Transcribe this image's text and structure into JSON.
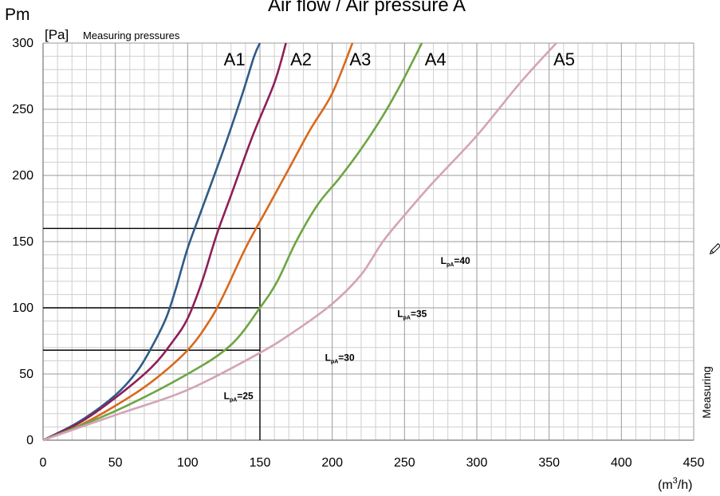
{
  "page": {
    "title": "Air flow / Air pressure A",
    "y_unit_symbol": "Pm",
    "y_unit": "[Pa]",
    "y_label": "Measuring pressures",
    "x_unit_base": "(m",
    "x_unit_exp": "3",
    "x_unit_tail": "/h)",
    "right_label": "Measuring"
  },
  "chart_data": {
    "type": "line",
    "title": "Air flow / Air pressure A",
    "xlabel": "(m3/h)",
    "ylabel": "Measuring pressures",
    "xlim": [
      0,
      450
    ],
    "ylim": [
      0,
      300
    ],
    "x_ticks": [
      0,
      50,
      100,
      150,
      200,
      250,
      300,
      350,
      400,
      450
    ],
    "y_ticks": [
      0,
      50,
      100,
      150,
      200,
      250,
      300
    ],
    "grid": true,
    "series": [
      {
        "name": "A1",
        "color": "#2f5b87",
        "points": [
          [
            0,
            0
          ],
          [
            25,
            14
          ],
          [
            50,
            34
          ],
          [
            65,
            52
          ],
          [
            75,
            70
          ],
          [
            85,
            92
          ],
          [
            92,
            115
          ],
          [
            100,
            145
          ],
          [
            110,
            175
          ],
          [
            125,
            220
          ],
          [
            138,
            262
          ],
          [
            146,
            290
          ],
          [
            150,
            300
          ]
        ]
      },
      {
        "name": "A2",
        "color": "#8e1f57",
        "points": [
          [
            0,
            0
          ],
          [
            25,
            13
          ],
          [
            50,
            32
          ],
          [
            75,
            55
          ],
          [
            90,
            75
          ],
          [
            100,
            92
          ],
          [
            110,
            120
          ],
          [
            120,
            155
          ],
          [
            130,
            185
          ],
          [
            145,
            230
          ],
          [
            160,
            270
          ],
          [
            168,
            300
          ]
        ]
      },
      {
        "name": "A3",
        "color": "#d8691e",
        "points": [
          [
            0,
            0
          ],
          [
            25,
            11
          ],
          [
            50,
            26
          ],
          [
            75,
            44
          ],
          [
            100,
            68
          ],
          [
            115,
            90
          ],
          [
            125,
            110
          ],
          [
            140,
            145
          ],
          [
            155,
            175
          ],
          [
            170,
            205
          ],
          [
            185,
            235
          ],
          [
            200,
            262
          ],
          [
            214,
            300
          ]
        ]
      },
      {
        "name": "A4",
        "color": "#6da543",
        "points": [
          [
            0,
            0
          ],
          [
            50,
            22
          ],
          [
            100,
            50
          ],
          [
            130,
            72
          ],
          [
            150,
            100
          ],
          [
            162,
            120
          ],
          [
            175,
            150
          ],
          [
            190,
            178
          ],
          [
            205,
            198
          ],
          [
            220,
            220
          ],
          [
            235,
            245
          ],
          [
            248,
            270
          ],
          [
            262,
            300
          ]
        ]
      },
      {
        "name": "A5",
        "color": "#d4a3b6",
        "points": [
          [
            0,
            0
          ],
          [
            50,
            19
          ],
          [
            100,
            38
          ],
          [
            150,
            66
          ],
          [
            175,
            83
          ],
          [
            200,
            103
          ],
          [
            220,
            125
          ],
          [
            235,
            150
          ],
          [
            250,
            170
          ],
          [
            270,
            195
          ],
          [
            300,
            230
          ],
          [
            330,
            270
          ],
          [
            355,
            300
          ]
        ]
      }
    ],
    "annotations": [
      {
        "label": "L",
        "sub": "pA",
        "value": "=25",
        "x": 125,
        "y": 31
      },
      {
        "label": "L",
        "sub": "pA",
        "value": "=30",
        "x": 195,
        "y": 60
      },
      {
        "label": "L",
        "sub": "pA",
        "value": "=35",
        "x": 245,
        "y": 93
      },
      {
        "label": "L",
        "sub": "pA",
        "value": "=40",
        "x": 275,
        "y": 133
      }
    ],
    "reference_lines": [
      {
        "y": 160,
        "x_end": 150
      },
      {
        "y": 100,
        "x_end": 150
      },
      {
        "y": 68,
        "x_end": 150
      },
      {
        "x": 150,
        "y_end": 160
      }
    ],
    "series_label_positions": [
      {
        "name": "A1",
        "x": 125,
        "y": 283
      },
      {
        "name": "A2",
        "x": 171,
        "y": 283
      },
      {
        "name": "A3",
        "x": 212,
        "y": 283
      },
      {
        "name": "A4",
        "x": 264,
        "y": 283
      },
      {
        "name": "A5",
        "x": 353,
        "y": 283
      }
    ]
  }
}
